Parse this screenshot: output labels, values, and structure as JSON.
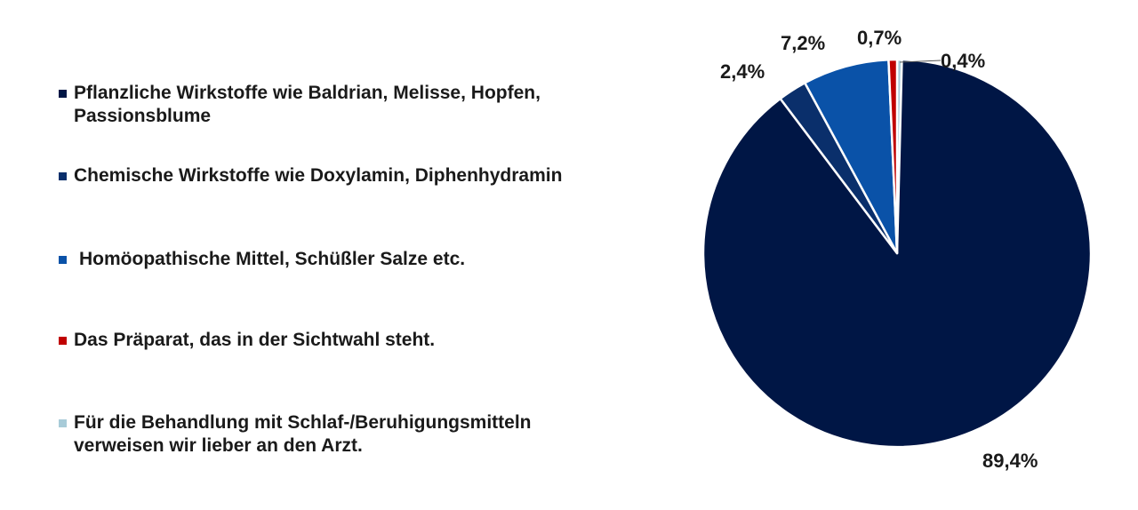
{
  "chart_data": {
    "type": "pie",
    "legend_position": "left",
    "slices": [
      {
        "name": "Pflanzliche Wirkstoffe wie Baldrian, Melisse, Hopfen,\nPassionsblume",
        "value": 89.4,
        "label": "89,4%",
        "color": "#001645"
      },
      {
        "name": "Chemische Wirkstoffe wie Doxylamin, Diphenhydramin",
        "value": 2.4,
        "label": "2,4%",
        "color": "#0a2f6b"
      },
      {
        "name": "Homöopathische Mittel, Schüßler Salze etc.",
        "value": 7.2,
        "label": "7,2%",
        "color": "#0a52a8"
      },
      {
        "name": "Das Präparat, das in der Sichtwahl steht.",
        "value": 0.7,
        "label": "0,7%",
        "color": "#c00000"
      },
      {
        "name": "Für die Behandlung mit Schlaf-/Beruhigungsmitteln\nverweisen wir lieber an den Arzt.",
        "value": 0.4,
        "label": "0,4%",
        "color": "#a8cbd8"
      }
    ]
  }
}
